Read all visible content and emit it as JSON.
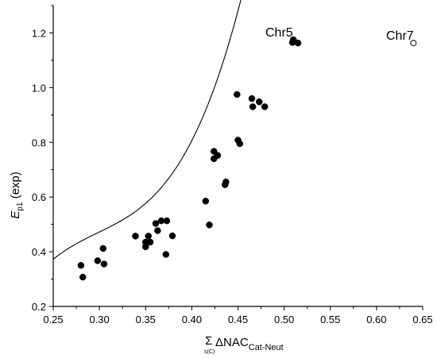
{
  "chart_data": {
    "type": "scatter",
    "title": "",
    "xlabel": {
      "sum_symbol": "Σ",
      "sum_subscript": "s(C)",
      "main": "ΔNAC",
      "subscript": "Cat-Neut"
    },
    "ylabel": {
      "main": "E",
      "subscript": "p1",
      "suffix": " (exp)"
    },
    "xlim": [
      0.25,
      0.65
    ],
    "ylim": [
      0.2,
      1.3
    ],
    "x_ticks": [
      "0.25",
      "0.30",
      "0.35",
      "0.40",
      "0.45",
      "0.50",
      "0.55",
      "0.60",
      "0.65"
    ],
    "y_ticks": [
      "0.2",
      "0.4",
      "0.6",
      "0.8",
      "1.0",
      "1.2"
    ],
    "grid": false,
    "legend": "none",
    "colors": {
      "points": "#000000",
      "outlier": "#ffffff",
      "fit": "#000000"
    },
    "series": [
      {
        "marker": "filled-circle",
        "points": [
          [
            0.28,
            0.35
          ],
          [
            0.282,
            0.307
          ],
          [
            0.298,
            0.367
          ],
          [
            0.304,
            0.412
          ],
          [
            0.305,
            0.355
          ],
          [
            0.339,
            0.457
          ],
          [
            0.35,
            0.418
          ],
          [
            0.35,
            0.435
          ],
          [
            0.353,
            0.457
          ],
          [
            0.355,
            0.435
          ],
          [
            0.361,
            0.503
          ],
          [
            0.363,
            0.477
          ],
          [
            0.367,
            0.513
          ],
          [
            0.372,
            0.39
          ],
          [
            0.373,
            0.513
          ],
          [
            0.379,
            0.458
          ],
          [
            0.415,
            0.585
          ],
          [
            0.419,
            0.498
          ],
          [
            0.424,
            0.74
          ],
          [
            0.424,
            0.767
          ],
          [
            0.428,
            0.752
          ],
          [
            0.436,
            0.645
          ],
          [
            0.437,
            0.655
          ],
          [
            0.449,
            0.975
          ],
          [
            0.45,
            0.808
          ],
          [
            0.452,
            0.795
          ],
          [
            0.465,
            0.96
          ],
          [
            0.466,
            0.93
          ],
          [
            0.473,
            0.948
          ],
          [
            0.479,
            0.93
          ],
          [
            0.509,
            1.165
          ],
          [
            0.51,
            1.175
          ],
          [
            0.515,
            1.163
          ]
        ]
      },
      {
        "marker": "open-circle",
        "points": [
          [
            0.64,
            1.163
          ]
        ]
      }
    ],
    "fit": {
      "type": "cubic",
      "coefficients": [
        -4.25,
        44.24,
        -143.0,
        160.0
      ],
      "x_range": [
        0.25,
        0.525
      ]
    },
    "annotations": [
      {
        "text": "Chr5",
        "x": 0.507,
        "y": 1.2
      },
      {
        "text": "Chr7",
        "x": 0.64,
        "y": 1.2
      }
    ]
  }
}
